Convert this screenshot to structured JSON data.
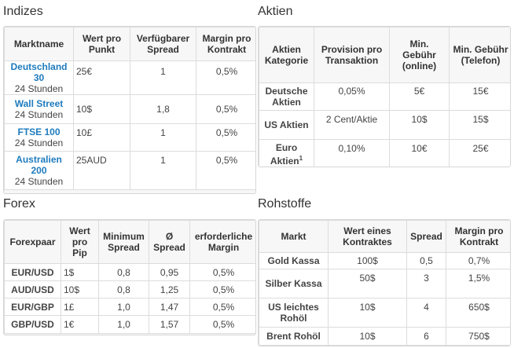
{
  "indizes": {
    "title": "Indizes",
    "headers": [
      "Marktname",
      "Wert pro Punkt",
      "Verfügbarer Spread",
      "Margin pro Kontrakt"
    ],
    "rows": [
      {
        "name": "Deutschland 30",
        "sub": "24 Stunden",
        "wert": "25€",
        "spread": "1",
        "margin": "0,5%"
      },
      {
        "name": "Wall Street",
        "sub": "24 Stunden",
        "wert": "10$",
        "spread": "1,8",
        "margin": "0,5%"
      },
      {
        "name": "FTSE 100",
        "sub": "24 Stunden",
        "wert": "10£",
        "spread": "1",
        "margin": "0,5%"
      },
      {
        "name": "Australien 200",
        "sub": "24 Stunden",
        "wert": "25AUD",
        "spread": "1",
        "margin": "0,5%"
      }
    ]
  },
  "aktien": {
    "title": "Aktien",
    "headers": [
      "Aktien Kategorie",
      "Provision pro Transaktion",
      "Min. Gebühr (online)",
      "Min. Gebühr (Telefon)"
    ],
    "rows": [
      {
        "kategorie": "Deutsche Aktien",
        "provision": "0,05%",
        "online": "5€",
        "telefon": "15€"
      },
      {
        "kategorie": "US Aktien",
        "provision": "2 Cent/Aktie",
        "online": "10$",
        "telefon": "15$"
      },
      {
        "kategorie": "Euro Aktien",
        "footnote": "1",
        "provision": "0,10%",
        "online": "10€",
        "telefon": "25€"
      }
    ]
  },
  "forex": {
    "title": "Forex",
    "headers": [
      "Forexpaar",
      "Wert pro Pip",
      "Minimum Spread",
      "Ø Spread",
      "erforderliche Margin"
    ],
    "rows": [
      {
        "paar": "EUR/USD",
        "wert": "1$",
        "min": "0,8",
        "avg": "0,95",
        "margin": "0,5%"
      },
      {
        "paar": "AUD/USD",
        "wert": "10$",
        "min": "0,8",
        "avg": "1,25",
        "margin": "0,5%"
      },
      {
        "paar": "EUR/GBP",
        "wert": "1£",
        "min": "1,0",
        "avg": "1,47",
        "margin": "0,5%"
      },
      {
        "paar": "GBP/USD",
        "wert": "1€",
        "min": "1,0",
        "avg": "1,57",
        "margin": "0,5%"
      }
    ]
  },
  "rohstoffe": {
    "title": "Rohstoffe",
    "headers": [
      "Markt",
      "Wert eines Kontraktes",
      "Spread",
      "Margin pro Kontrakt"
    ],
    "rows": [
      {
        "markt": "Gold Kassa",
        "wert": "100$",
        "spread": "0,5",
        "margin": "0,7%"
      },
      {
        "markt": "Silber Kassa",
        "wert": "50$",
        "spread": "3",
        "margin": "1,5%"
      },
      {
        "markt": "US leichtes Rohöl",
        "wert": "10$",
        "spread": "4",
        "margin": "650$"
      },
      {
        "markt": "Brent Rohöl",
        "wert": "10$",
        "spread": "6",
        "margin": "750$"
      }
    ]
  }
}
